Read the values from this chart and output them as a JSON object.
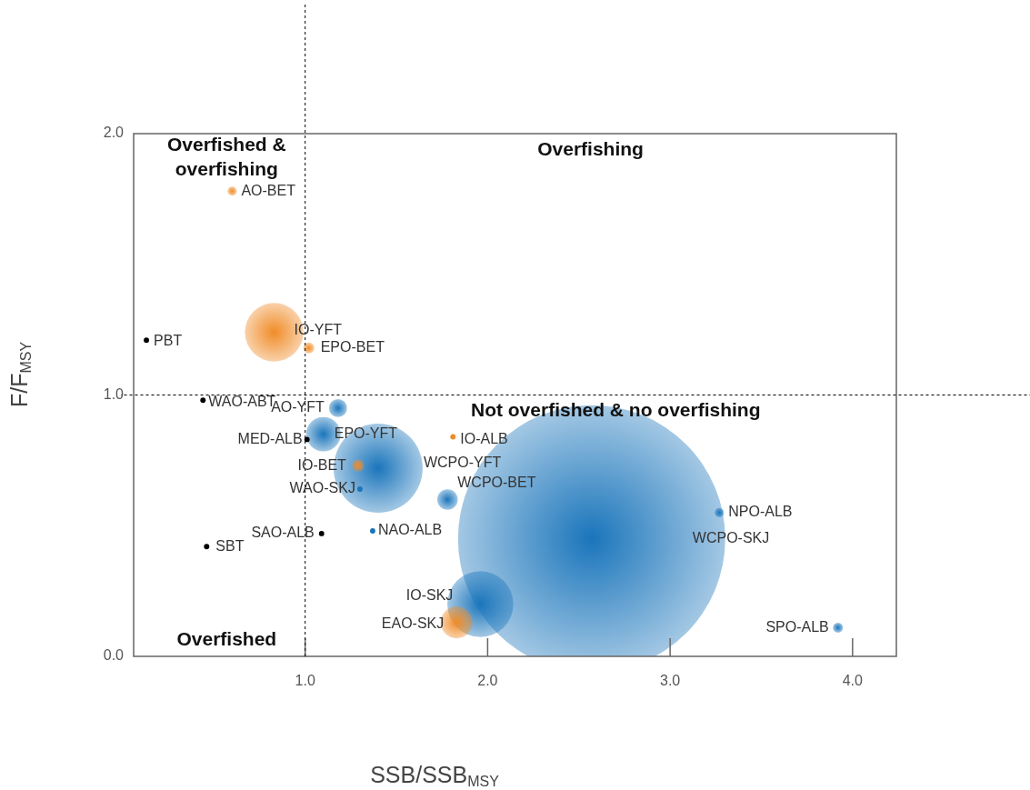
{
  "chart_data": {
    "type": "bubble",
    "xlabel": "SSB/SSB$_{MSY}$",
    "ylabel": "F/F$_{MSY}$",
    "xlim": [
      0.06,
      4.24
    ],
    "ylim": [
      0,
      2
    ],
    "xticks": [
      {
        "value": 1,
        "label": "1.0"
      },
      {
        "value": 2,
        "label": "2.0"
      },
      {
        "value": 3,
        "label": "3.0"
      },
      {
        "value": 4,
        "label": "4.0"
      }
    ],
    "yticks": [
      {
        "value": 0,
        "label": "0.0"
      },
      {
        "value": 1,
        "label": "1.0"
      },
      {
        "value": 2,
        "label": "2.0"
      }
    ],
    "grid": false,
    "legend": false,
    "ref_lines": [
      {
        "axis": "x",
        "value": 1,
        "color": "#000000",
        "line_style": "dashed"
      },
      {
        "axis": "y",
        "value": 1,
        "color": "#000000",
        "line_style": "dashed"
      }
    ],
    "annotations": [
      "Overfished & overfishing",
      "Overfishing",
      "Not overfished & no overfishing",
      "Overfished"
    ],
    "series": [
      {
        "name": "AO-BET",
        "color": "#f08c28",
        "x": [
          0.6
        ],
        "values": [
          1.78
        ],
        "sizes": [
          0.0012
        ]
      },
      {
        "name": "IO-YFT",
        "color": "#f08c28",
        "x": [
          0.83
        ],
        "values": [
          1.24
        ],
        "sizes": [
          0.048
        ]
      },
      {
        "name": "EPO-BET",
        "color": "#f08c28",
        "x": [
          1.02
        ],
        "values": [
          1.18
        ],
        "sizes": [
          0.0017
        ]
      },
      {
        "name": "PBT",
        "color": "#000000",
        "x": [
          0.13
        ],
        "values": [
          1.21
        ],
        "sizes": [
          0.0004
        ]
      },
      {
        "name": "WAO-ABT",
        "color": "#000000",
        "x": [
          0.44
        ],
        "values": [
          0.98
        ],
        "sizes": [
          0.0004
        ]
      },
      {
        "name": "AO-YFT",
        "color": "#1a75bb",
        "x": [
          1.18
        ],
        "values": [
          0.95
        ],
        "sizes": [
          0.0046
        ]
      },
      {
        "name": "EPO-YFT",
        "color": "#1a75bb",
        "x": [
          1.1
        ],
        "values": [
          0.85
        ],
        "sizes": [
          0.0167
        ]
      },
      {
        "name": "MED-ALB",
        "color": "#000000",
        "x": [
          1.01
        ],
        "values": [
          0.83
        ],
        "sizes": [
          0.0004
        ]
      },
      {
        "name": "IO-ALB",
        "color": "#f08c28",
        "x": [
          1.81
        ],
        "values": [
          0.84
        ],
        "sizes": [
          0.0004
        ]
      },
      {
        "name": "WCPO-YFT",
        "color": "#1a75bb",
        "x": [
          1.4
        ],
        "values": [
          0.72
        ],
        "sizes": [
          0.111
        ]
      },
      {
        "name": "IO-BET",
        "color": "#f08c28",
        "x": [
          1.29
        ],
        "values": [
          0.73
        ],
        "sizes": [
          0.002
        ]
      },
      {
        "name": "WAO-SKJ",
        "color": "#1a75bb",
        "x": [
          1.3
        ],
        "values": [
          0.64
        ],
        "sizes": [
          0.0004
        ]
      },
      {
        "name": "WCPO-BET",
        "color": "#1a75bb",
        "x": [
          1.78
        ],
        "values": [
          0.6
        ],
        "sizes": [
          0.0059
        ]
      },
      {
        "name": "SAO-ALB",
        "color": "#000000",
        "x": [
          1.09
        ],
        "values": [
          0.47
        ],
        "sizes": [
          0.0004
        ]
      },
      {
        "name": "NAO-ALB",
        "color": "#1a75bb",
        "x": [
          1.37
        ],
        "values": [
          0.48
        ],
        "sizes": [
          0.0004
        ]
      },
      {
        "name": "SBT",
        "color": "#000000",
        "x": [
          0.46
        ],
        "values": [
          0.42
        ],
        "sizes": [
          0.0004
        ]
      },
      {
        "name": "IO-SKJ",
        "color": "#1a75bb",
        "x": [
          1.96
        ],
        "values": [
          0.2
        ],
        "sizes": [
          0.061
        ]
      },
      {
        "name": "EAO-SKJ",
        "color": "#f08c28",
        "x": [
          1.83
        ],
        "values": [
          0.13
        ],
        "sizes": [
          0.0142
        ]
      },
      {
        "name": "WCPO-SKJ",
        "color": "#1a75bb",
        "x": [
          2.57
        ],
        "values": [
          0.45
        ],
        "sizes": [
          1
        ]
      },
      {
        "name": "NPO-ALB",
        "color": "#1a75bb",
        "x": [
          3.27
        ],
        "values": [
          0.55
        ],
        "sizes": [
          0.0012
        ]
      },
      {
        "name": "SPO-ALB",
        "color": "#1a75bb",
        "x": [
          3.92
        ],
        "values": [
          0.11
        ],
        "sizes": [
          0.0014
        ]
      }
    ]
  }
}
